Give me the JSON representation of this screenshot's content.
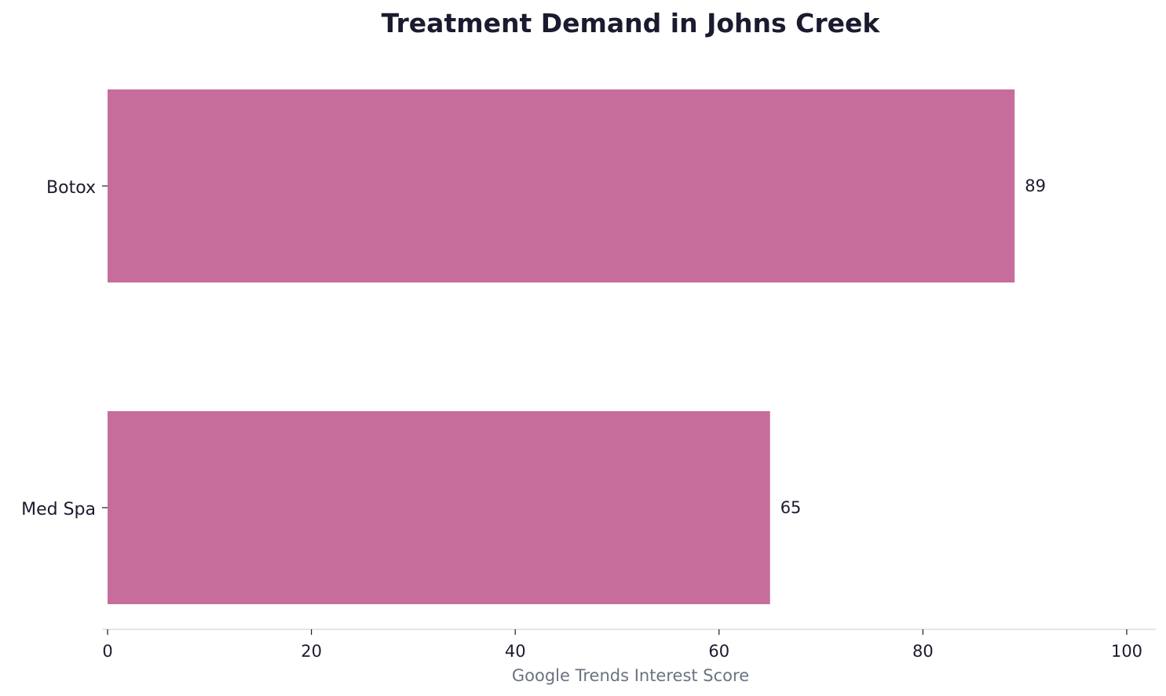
{
  "chart_data": {
    "type": "bar",
    "orientation": "horizontal",
    "title": "Treatment Demand in Johns Creek",
    "xlabel": "Google Trends Interest Score",
    "ylabel": "",
    "categories": [
      "Botox",
      "Med Spa"
    ],
    "values": [
      89,
      65
    ],
    "value_labels": [
      "89",
      "65"
    ],
    "xlim": [
      0,
      100
    ],
    "x_ticks": [
      "0",
      "20",
      "40",
      "60",
      "80",
      "100"
    ],
    "grid": false,
    "legend": "none",
    "colors": {
      "bar": "#c66d9b",
      "axis_line": "#dddddd",
      "text": "#1b1b2f",
      "axis_title": "#6b7280"
    }
  }
}
